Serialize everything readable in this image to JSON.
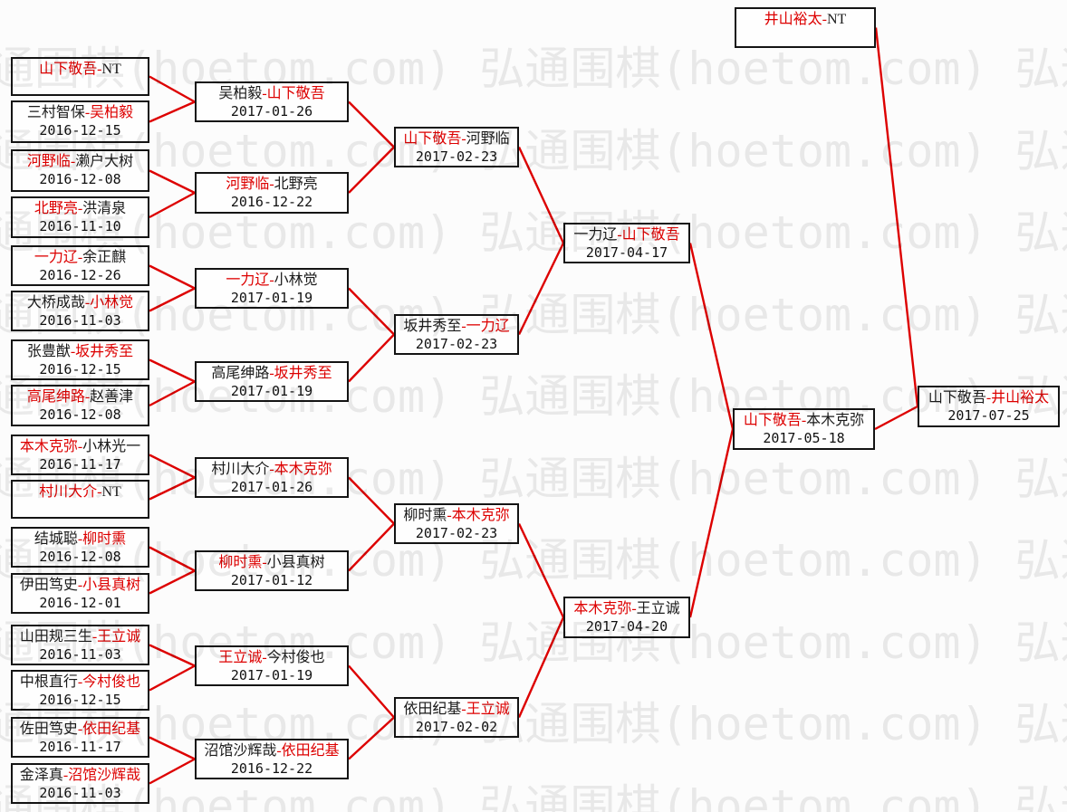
{
  "watermark": {
    "text": "弘通围棋(hoetom.com)",
    "color": "#ebebeb"
  },
  "colors": {
    "line": "#dd0000",
    "winner_text": "#dd0000",
    "normal_text": "#1a1a1a",
    "box_border": "#141414",
    "background": "#fcfcfc"
  },
  "matches": [
    {
      "id": "b1",
      "p1": "山下敬吾",
      "p2": "NT",
      "winner": "p1",
      "date": ""
    },
    {
      "id": "b2",
      "p1": "三村智保",
      "p2": "吴柏毅",
      "winner": "p2",
      "date": "2016-12-15"
    },
    {
      "id": "b3",
      "p1": "河野临",
      "p2": "濑户大树",
      "winner": "p1",
      "date": "2016-12-08"
    },
    {
      "id": "b4",
      "p1": "北野亮",
      "p2": "洪清泉",
      "winner": "p1",
      "date": "2016-11-10"
    },
    {
      "id": "b5",
      "p1": "一力辽",
      "p2": "余正麒",
      "winner": "p1",
      "date": "2016-12-26"
    },
    {
      "id": "b6",
      "p1": "大桥成哉",
      "p2": "小林觉",
      "winner": "p2",
      "date": "2016-11-03"
    },
    {
      "id": "b7",
      "p1": "张豊猷",
      "p2": "坂井秀至",
      "winner": "p2",
      "date": "2016-12-15"
    },
    {
      "id": "b8",
      "p1": "高尾绅路",
      "p2": "赵善津",
      "winner": "p1",
      "date": "2016-12-08"
    },
    {
      "id": "b9",
      "p1": "本木克弥",
      "p2": "小林光一",
      "winner": "p1",
      "date": "2016-11-17"
    },
    {
      "id": "b10",
      "p1": "村川大介",
      "p2": "NT",
      "winner": "p1",
      "date": ""
    },
    {
      "id": "b11",
      "p1": "结城聪",
      "p2": "柳时熏",
      "winner": "p2",
      "date": "2016-12-08"
    },
    {
      "id": "b12",
      "p1": "伊田笃史",
      "p2": "小县真树",
      "winner": "p2",
      "date": "2016-12-01"
    },
    {
      "id": "b13",
      "p1": "山田规三生",
      "p2": "王立诚",
      "winner": "p2",
      "date": "2016-11-03"
    },
    {
      "id": "b14",
      "p1": "中根直行",
      "p2": "今村俊也",
      "winner": "p2",
      "date": "2016-12-15"
    },
    {
      "id": "b15",
      "p1": "佐田笃史",
      "p2": "依田纪基",
      "winner": "p2",
      "date": "2016-11-17"
    },
    {
      "id": "b16",
      "p1": "金泽真",
      "p2": "沼馆沙辉哉",
      "winner": "p2",
      "date": "2016-11-03"
    },
    {
      "id": "r2m1",
      "p1": "吴柏毅",
      "p2": "山下敬吾",
      "winner": "p2",
      "date": "2017-01-26"
    },
    {
      "id": "r2m2",
      "p1": "河野临",
      "p2": "北野亮",
      "winner": "p1",
      "date": "2016-12-22"
    },
    {
      "id": "r2m3",
      "p1": "一力辽",
      "p2": "小林觉",
      "winner": "p1",
      "date": "2017-01-19"
    },
    {
      "id": "r2m4",
      "p1": "高尾绅路",
      "p2": "坂井秀至",
      "winner": "p2",
      "date": "2017-01-19"
    },
    {
      "id": "r2m5",
      "p1": "村川大介",
      "p2": "本木克弥",
      "winner": "p2",
      "date": "2017-01-26"
    },
    {
      "id": "r2m6",
      "p1": "柳时熏",
      "p2": "小县真树",
      "winner": "p1",
      "date": "2017-01-12"
    },
    {
      "id": "r2m7",
      "p1": "王立诚",
      "p2": "今村俊也",
      "winner": "p1",
      "date": "2017-01-19"
    },
    {
      "id": "r2m8",
      "p1": "沼馆沙辉哉",
      "p2": "依田纪基",
      "winner": "p2",
      "date": "2016-12-22"
    },
    {
      "id": "r3m1",
      "p1": "山下敬吾",
      "p2": "河野临",
      "winner": "p1",
      "date": "2017-02-23"
    },
    {
      "id": "r3m2",
      "p1": "坂井秀至",
      "p2": "一力辽",
      "winner": "p2",
      "date": "2017-02-23"
    },
    {
      "id": "r3m3",
      "p1": "柳时熏",
      "p2": "本木克弥",
      "winner": "p2",
      "date": "2017-02-23"
    },
    {
      "id": "r3m4",
      "p1": "依田纪基",
      "p2": "王立诚",
      "winner": "p2",
      "date": "2017-02-02"
    },
    {
      "id": "r4m1",
      "p1": "一力辽",
      "p2": "山下敬吾",
      "winner": "p2",
      "date": "2017-04-17"
    },
    {
      "id": "r4m2",
      "p1": "本木克弥",
      "p2": "王立诚",
      "winner": "p1",
      "date": "2017-04-20"
    },
    {
      "id": "r5m1",
      "p1": "山下敬吾",
      "p2": "本木克弥",
      "winner": "p1",
      "date": "2017-05-18"
    },
    {
      "id": "holder",
      "p1": "井山裕太",
      "p2": "NT",
      "winner": "p1",
      "date": ""
    },
    {
      "id": "final",
      "p1": "山下敬吾",
      "p2": "井山裕太",
      "winner": "p2",
      "date": "2017-07-25"
    }
  ]
}
